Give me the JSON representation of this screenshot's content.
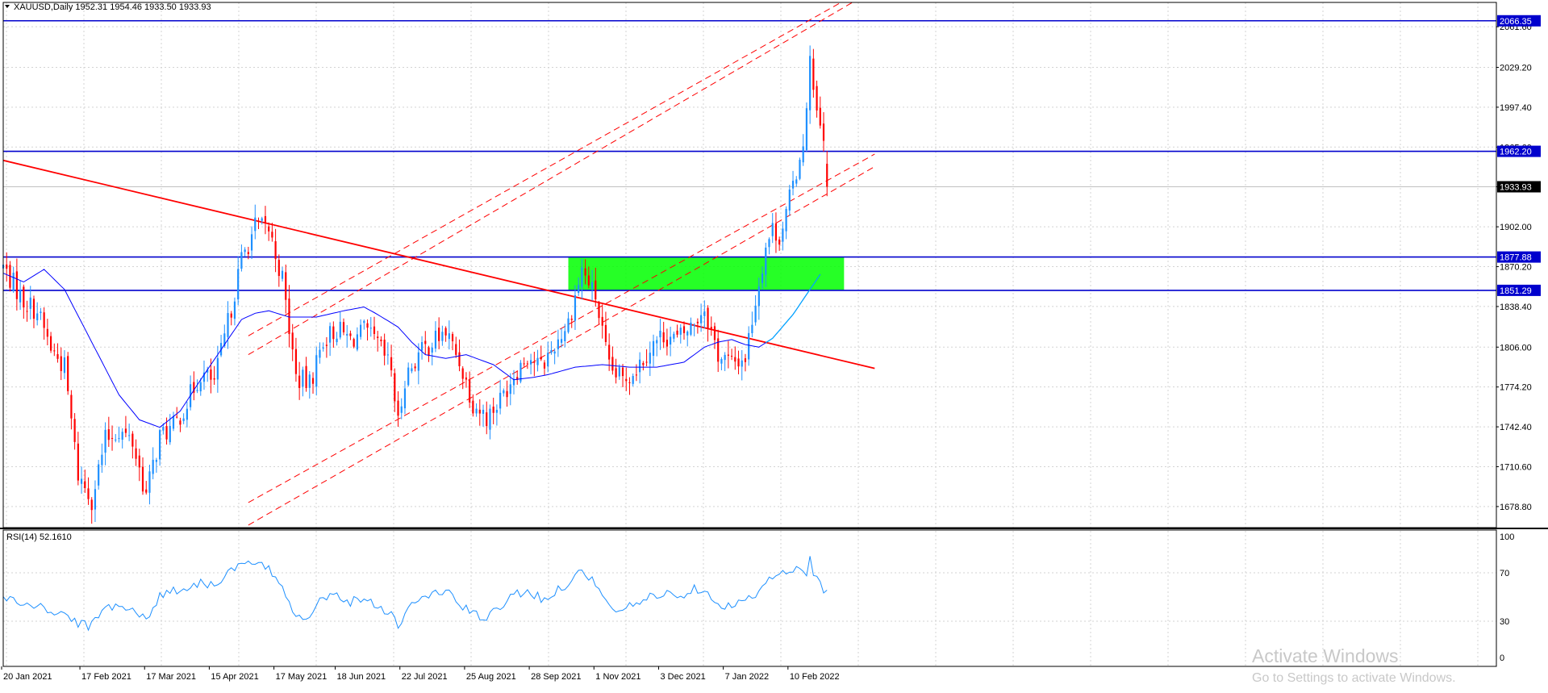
{
  "header": {
    "symbol_line": "XAUUSD,Daily  1952.31 1954.46 1933.50 1933.93"
  },
  "rsi_panel": {
    "label": "RSI(14) 52.1610",
    "levels": [
      "100",
      "70",
      "30",
      "0"
    ]
  },
  "watermark": {
    "title": "Activate Windows",
    "subtitle": "Go to Settings to activate Windows."
  },
  "colors": {
    "bull": "#1e90ff",
    "bear": "#ff0000",
    "hline": "#0000cd",
    "trend": "#ff0000",
    "ma": "#0000ff",
    "ma_tail": "#00aaff",
    "zone": "#00ff00",
    "rsi": "#1e90ff",
    "grid": "#d3d3d3"
  },
  "chart_data": {
    "type": "candlestick",
    "symbol": "XAUUSD",
    "timeframe": "Daily",
    "last_ohlc": {
      "open": 1952.31,
      "high": 1954.46,
      "low": 1933.5,
      "close": 1933.93
    },
    "y_ticks": [
      2061.6,
      2029.2,
      1997.4,
      1965.6,
      1933.93,
      1902.0,
      1870.2,
      1838.4,
      1806.0,
      1774.2,
      1742.4,
      1710.6,
      1678.8
    ],
    "x_ticks": [
      "20 Jan 2021",
      "17 Feb 2021",
      "17 Mar 2021",
      "15 Apr 2021",
      "17 May 2021",
      "18 Jun 2021",
      "22 Jul 2021",
      "25 Aug 2021",
      "28 Sep 2021",
      "1 Nov 2021",
      "3 Dec 2021",
      "7 Jan 2022",
      "10 Feb 2022"
    ],
    "ylim": [
      1662,
      2081
    ],
    "horizontal_levels": [
      {
        "value": 2066.35,
        "label": "2066.35"
      },
      {
        "value": 1962.2,
        "label": "1962.20"
      },
      {
        "value": 1877.88,
        "label": "1877.88"
      },
      {
        "value": 1851.29,
        "label": "1851.29"
      }
    ],
    "current_price": {
      "value": 1933.93,
      "label": "1933.93"
    },
    "support_zone": {
      "from_date": "1 Nov 2021",
      "to_date": "10 Mar 2022",
      "low": 1851.29,
      "high": 1877.88
    },
    "trendlines": [
      {
        "name": "descending",
        "style": "solid",
        "points": [
          [
            0,
            1955
          ],
          [
            256,
            1789
          ]
        ]
      },
      {
        "name": "channel-upper-1",
        "style": "dashed",
        "points": [
          [
            72,
            1815
          ],
          [
            252,
            2090
          ]
        ]
      },
      {
        "name": "channel-upper-2",
        "style": "dashed",
        "points": [
          [
            72,
            1800
          ],
          [
            252,
            2085
          ]
        ]
      },
      {
        "name": "channel-lower-1",
        "style": "dashed",
        "points": [
          [
            72,
            1682
          ],
          [
            256,
            1960
          ]
        ]
      },
      {
        "name": "channel-lower-2",
        "style": "dashed",
        "points": [
          [
            72,
            1664
          ],
          [
            256,
            1950
          ]
        ]
      }
    ],
    "close_anchors": [
      [
        0,
        1870
      ],
      [
        6,
        1843
      ],
      [
        10,
        1835
      ],
      [
        14,
        1805
      ],
      [
        18,
        1790
      ],
      [
        22,
        1704
      ],
      [
        26,
        1685
      ],
      [
        30,
        1732
      ],
      [
        34,
        1740
      ],
      [
        38,
        1730
      ],
      [
        42,
        1688
      ],
      [
        46,
        1735
      ],
      [
        50,
        1742
      ],
      [
        54,
        1762
      ],
      [
        58,
        1785
      ],
      [
        62,
        1778
      ],
      [
        66,
        1825
      ],
      [
        70,
        1876
      ],
      [
        74,
        1902
      ],
      [
        78,
        1900
      ],
      [
        82,
        1860
      ],
      [
        86,
        1782
      ],
      [
        90,
        1776
      ],
      [
        94,
        1812
      ],
      [
        98,
        1820
      ],
      [
        102,
        1812
      ],
      [
        106,
        1818
      ],
      [
        110,
        1808
      ],
      [
        114,
        1788
      ],
      [
        116,
        1744
      ],
      [
        118,
        1782
      ],
      [
        122,
        1800
      ],
      [
        126,
        1810
      ],
      [
        130,
        1818
      ],
      [
        134,
        1795
      ],
      [
        138,
        1762
      ],
      [
        142,
        1750
      ],
      [
        146,
        1764
      ],
      [
        150,
        1785
      ],
      [
        154,
        1800
      ],
      [
        158,
        1790
      ],
      [
        162,
        1808
      ],
      [
        166,
        1826
      ],
      [
        170,
        1868
      ],
      [
        174,
        1846
      ],
      [
        178,
        1788
      ],
      [
        182,
        1780
      ],
      [
        186,
        1790
      ],
      [
        190,
        1806
      ],
      [
        194,
        1816
      ],
      [
        198,
        1812
      ],
      [
        202,
        1822
      ],
      [
        206,
        1838
      ],
      [
        210,
        1800
      ],
      [
        214,
        1793
      ],
      [
        218,
        1798
      ],
      [
        220,
        1829
      ],
      [
        222,
        1858
      ],
      [
        224,
        1887
      ],
      [
        226,
        1900
      ],
      [
        228,
        1895
      ],
      [
        230,
        1912
      ],
      [
        232,
        1935
      ],
      [
        234,
        1958
      ],
      [
        236,
        1990
      ],
      [
        237,
        2045
      ],
      [
        238,
        2010
      ],
      [
        239,
        1990
      ],
      [
        241,
        1968
      ],
      [
        242,
        1933.93
      ]
    ],
    "ma_anchors": [
      [
        0,
        1865
      ],
      [
        6,
        1858
      ],
      [
        12,
        1868
      ],
      [
        18,
        1852
      ],
      [
        26,
        1810
      ],
      [
        34,
        1768
      ],
      [
        40,
        1748
      ],
      [
        46,
        1742
      ],
      [
        52,
        1755
      ],
      [
        58,
        1780
      ],
      [
        64,
        1804
      ],
      [
        70,
        1828
      ],
      [
        74,
        1833
      ],
      [
        78,
        1835
      ],
      [
        84,
        1830
      ],
      [
        92,
        1830
      ],
      [
        100,
        1835
      ],
      [
        106,
        1838
      ],
      [
        110,
        1832
      ],
      [
        116,
        1822
      ],
      [
        120,
        1810
      ],
      [
        124,
        1800
      ],
      [
        130,
        1797
      ],
      [
        136,
        1800
      ],
      [
        144,
        1792
      ],
      [
        150,
        1780
      ],
      [
        156,
        1782
      ],
      [
        160,
        1784
      ],
      [
        168,
        1790
      ],
      [
        176,
        1792
      ],
      [
        184,
        1790
      ],
      [
        192,
        1790
      ],
      [
        200,
        1794
      ],
      [
        206,
        1806
      ],
      [
        210,
        1810
      ],
      [
        214,
        1812
      ],
      [
        218,
        1808
      ],
      [
        222,
        1806
      ],
      [
        226,
        1813
      ],
      [
        232,
        1832
      ],
      [
        236,
        1848
      ],
      [
        240,
        1864
      ]
    ],
    "rsi_anchors": [
      [
        0,
        50
      ],
      [
        6,
        44
      ],
      [
        10,
        42
      ],
      [
        14,
        38
      ],
      [
        18,
        36
      ],
      [
        22,
        28
      ],
      [
        26,
        26
      ],
      [
        30,
        42
      ],
      [
        34,
        44
      ],
      [
        38,
        40
      ],
      [
        42,
        30
      ],
      [
        46,
        52
      ],
      [
        50,
        55
      ],
      [
        54,
        58
      ],
      [
        58,
        62
      ],
      [
        62,
        60
      ],
      [
        66,
        70
      ],
      [
        70,
        76
      ],
      [
        74,
        78
      ],
      [
        78,
        72
      ],
      [
        82,
        60
      ],
      [
        86,
        34
      ],
      [
        90,
        36
      ],
      [
        94,
        50
      ],
      [
        98,
        52
      ],
      [
        102,
        46
      ],
      [
        106,
        50
      ],
      [
        110,
        42
      ],
      [
        114,
        38
      ],
      [
        116,
        24
      ],
      [
        118,
        38
      ],
      [
        122,
        48
      ],
      [
        126,
        52
      ],
      [
        130,
        56
      ],
      [
        134,
        44
      ],
      [
        138,
        36
      ],
      [
        142,
        32
      ],
      [
        146,
        42
      ],
      [
        150,
        52
      ],
      [
        154,
        56
      ],
      [
        158,
        48
      ],
      [
        162,
        54
      ],
      [
        166,
        62
      ],
      [
        170,
        72
      ],
      [
        174,
        62
      ],
      [
        178,
        40
      ],
      [
        182,
        40
      ],
      [
        186,
        44
      ],
      [
        190,
        50
      ],
      [
        194,
        54
      ],
      [
        198,
        50
      ],
      [
        202,
        56
      ],
      [
        206,
        58
      ],
      [
        210,
        44
      ],
      [
        214,
        42
      ],
      [
        218,
        46
      ],
      [
        222,
        56
      ],
      [
        226,
        66
      ],
      [
        230,
        70
      ],
      [
        234,
        72
      ],
      [
        236,
        68
      ],
      [
        237,
        82
      ],
      [
        238,
        70
      ],
      [
        240,
        62
      ],
      [
        242,
        52
      ]
    ]
  }
}
